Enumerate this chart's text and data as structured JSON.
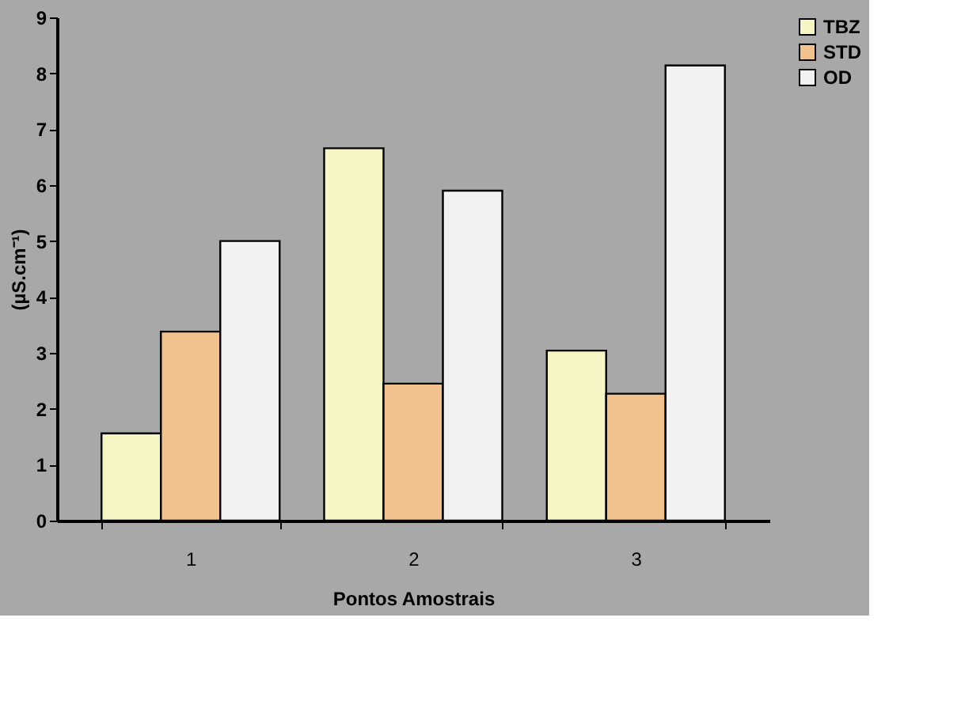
{
  "chart_data": {
    "type": "bar",
    "xlabel": "Pontos Amostrais",
    "ylabel": "(µS.cm⁻¹)",
    "categories": [
      "1",
      "2",
      "3"
    ],
    "series": [
      {
        "name": "TBZ",
        "color": "#f6f6c4",
        "values": [
          1.56,
          6.66,
          3.04
        ]
      },
      {
        "name": "STD",
        "color": "#f2c28e",
        "values": [
          3.38,
          2.45,
          2.27
        ]
      },
      {
        "name": "OD",
        "color": "#f2f2f2",
        "values": [
          5.0,
          5.9,
          8.14
        ]
      }
    ],
    "ylim": [
      0,
      9
    ],
    "yticks": [
      0,
      1,
      2,
      3,
      4,
      5,
      6,
      7,
      8,
      9
    ],
    "grid": false,
    "legend": "right"
  }
}
